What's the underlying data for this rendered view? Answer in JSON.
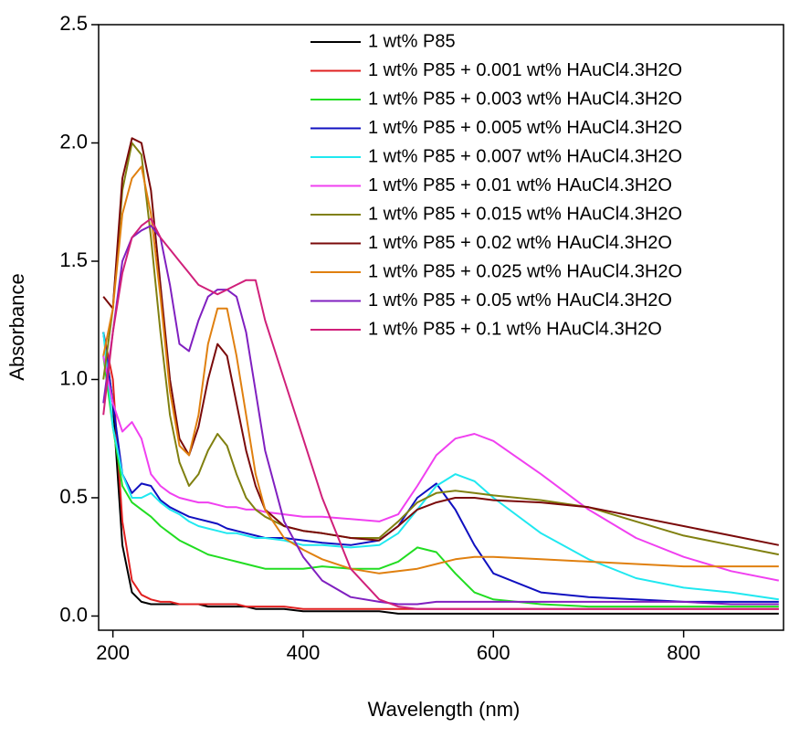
{
  "chart_data": {
    "type": "line",
    "x_label": "Wavelength (nm)",
    "y_label": "Absorbance",
    "x": [
      190,
      200,
      210,
      220,
      230,
      240,
      250,
      260,
      270,
      280,
      290,
      300,
      310,
      320,
      330,
      340,
      350,
      360,
      380,
      400,
      420,
      450,
      480,
      500,
      520,
      540,
      560,
      580,
      600,
      650,
      700,
      750,
      800,
      850,
      900
    ],
    "xlim": [
      185,
      905
    ],
    "xticks": [
      200,
      400,
      600,
      800
    ],
    "ylim": [
      -0.06,
      2.5
    ],
    "yticks": [
      {
        "value": 0,
        "label": "0.0"
      },
      {
        "value": 0.5,
        "label": "0.5"
      },
      {
        "value": 1,
        "label": "1.0"
      },
      {
        "value": 1.5,
        "label": "1.5"
      },
      {
        "value": 2,
        "label": "2.0"
      },
      {
        "value": 2.5,
        "label": "2.5"
      }
    ],
    "grid": false,
    "legend": "upper right",
    "series": [
      {
        "name": "1 wt% P85",
        "color": "#000000",
        "values": [
          1.2,
          0.9,
          0.3,
          0.1,
          0.06,
          0.05,
          0.05,
          0.05,
          0.05,
          0.05,
          0.05,
          0.04,
          0.04,
          0.04,
          0.04,
          0.04,
          0.03,
          0.03,
          0.03,
          0.02,
          0.02,
          0.02,
          0.02,
          0.01,
          0.01,
          0.01,
          0.01,
          0.01,
          0.01,
          0.01,
          0.01,
          0.01,
          0.01,
          0.01,
          0.01
        ]
      },
      {
        "name": "1 wt% P85 + 0.001 wt% HAuCl4.3H2O",
        "color": "#e02020",
        "values": [
          1.2,
          1.0,
          0.4,
          0.15,
          0.09,
          0.07,
          0.06,
          0.06,
          0.05,
          0.05,
          0.05,
          0.05,
          0.05,
          0.05,
          0.05,
          0.04,
          0.04,
          0.04,
          0.04,
          0.03,
          0.03,
          0.03,
          0.03,
          0.03,
          0.03,
          0.03,
          0.03,
          0.03,
          0.03,
          0.03,
          0.03,
          0.03,
          0.03,
          0.03,
          0.03
        ]
      },
      {
        "name": "1 wt% P85 + 0.003 wt% HAuCl4.3H2O",
        "color": "#22dd22",
        "values": [
          1.1,
          0.8,
          0.55,
          0.48,
          0.45,
          0.42,
          0.38,
          0.35,
          0.32,
          0.3,
          0.28,
          0.26,
          0.25,
          0.24,
          0.23,
          0.22,
          0.21,
          0.2,
          0.2,
          0.2,
          0.21,
          0.2,
          0.2,
          0.23,
          0.29,
          0.27,
          0.18,
          0.1,
          0.07,
          0.05,
          0.04,
          0.04,
          0.04,
          0.04,
          0.04
        ]
      },
      {
        "name": "1 wt% P85 + 0.005 wt% HAuCl4.3H2O",
        "color": "#1010c0",
        "values": [
          1.2,
          0.9,
          0.6,
          0.52,
          0.56,
          0.55,
          0.49,
          0.46,
          0.44,
          0.42,
          0.41,
          0.4,
          0.39,
          0.37,
          0.36,
          0.35,
          0.34,
          0.33,
          0.33,
          0.32,
          0.31,
          0.3,
          0.32,
          0.38,
          0.5,
          0.56,
          0.45,
          0.3,
          0.18,
          0.1,
          0.08,
          0.07,
          0.06,
          0.06,
          0.06
        ]
      },
      {
        "name": "1 wt% P85 + 0.007 wt% HAuCl4.3H2O",
        "color": "#20e8f0",
        "values": [
          1.2,
          0.8,
          0.6,
          0.5,
          0.5,
          0.52,
          0.48,
          0.45,
          0.43,
          0.4,
          0.38,
          0.37,
          0.36,
          0.35,
          0.35,
          0.34,
          0.33,
          0.33,
          0.32,
          0.3,
          0.3,
          0.29,
          0.3,
          0.35,
          0.45,
          0.55,
          0.6,
          0.57,
          0.5,
          0.35,
          0.24,
          0.16,
          0.12,
          0.1,
          0.07
        ]
      },
      {
        "name": "1 wt% P85 + 0.01 wt% HAuCl4.3H2O",
        "color": "#f040f0",
        "values": [
          1.1,
          0.9,
          0.78,
          0.82,
          0.75,
          0.6,
          0.55,
          0.52,
          0.5,
          0.49,
          0.48,
          0.48,
          0.47,
          0.46,
          0.46,
          0.45,
          0.45,
          0.44,
          0.43,
          0.42,
          0.42,
          0.41,
          0.4,
          0.43,
          0.55,
          0.68,
          0.75,
          0.77,
          0.74,
          0.6,
          0.45,
          0.33,
          0.25,
          0.19,
          0.15
        ]
      },
      {
        "name": "1 wt% P85 + 0.015 wt% HAuCl4.3H2O",
        "color": "#808010",
        "values": [
          1.0,
          1.3,
          1.8,
          2.0,
          1.95,
          1.6,
          1.2,
          0.85,
          0.65,
          0.55,
          0.6,
          0.7,
          0.77,
          0.72,
          0.6,
          0.5,
          0.45,
          0.42,
          0.38,
          0.36,
          0.35,
          0.33,
          0.33,
          0.4,
          0.48,
          0.52,
          0.53,
          0.52,
          0.51,
          0.49,
          0.46,
          0.4,
          0.34,
          0.3,
          0.26
        ]
      },
      {
        "name": "1 wt% P85 + 0.02 wt% HAuCl4.3H2O",
        "color": "#7a0a0a",
        "values": [
          1.35,
          1.3,
          1.85,
          2.02,
          2.0,
          1.8,
          1.4,
          1.0,
          0.75,
          0.68,
          0.8,
          1.0,
          1.15,
          1.1,
          0.9,
          0.7,
          0.55,
          0.45,
          0.38,
          0.36,
          0.35,
          0.33,
          0.32,
          0.38,
          0.45,
          0.48,
          0.5,
          0.5,
          0.49,
          0.48,
          0.46,
          0.42,
          0.38,
          0.34,
          0.3
        ]
      },
      {
        "name": "1 wt% P85 + 0.025 wt% HAuCl4.3H2O",
        "color": "#e08010",
        "values": [
          1.1,
          1.3,
          1.7,
          1.85,
          1.9,
          1.7,
          1.35,
          0.95,
          0.72,
          0.68,
          0.85,
          1.15,
          1.3,
          1.3,
          1.1,
          0.85,
          0.6,
          0.45,
          0.33,
          0.28,
          0.24,
          0.2,
          0.18,
          0.19,
          0.2,
          0.22,
          0.24,
          0.25,
          0.25,
          0.24,
          0.23,
          0.22,
          0.21,
          0.21,
          0.21
        ]
      },
      {
        "name": "1 wt% P85 + 0.05 wt% HAuCl4.3H2O",
        "color": "#8020c0",
        "values": [
          0.9,
          1.2,
          1.5,
          1.6,
          1.63,
          1.65,
          1.6,
          1.4,
          1.15,
          1.12,
          1.25,
          1.35,
          1.38,
          1.38,
          1.35,
          1.2,
          0.95,
          0.7,
          0.4,
          0.25,
          0.15,
          0.08,
          0.06,
          0.05,
          0.05,
          0.06,
          0.06,
          0.06,
          0.06,
          0.06,
          0.06,
          0.06,
          0.06,
          0.05,
          0.05
        ]
      },
      {
        "name": "1 wt% P85 + 0.1 wt% HAuCl4.3H2O",
        "color": "#d0207a",
        "values": [
          0.85,
          1.2,
          1.45,
          1.6,
          1.65,
          1.68,
          1.6,
          1.55,
          1.5,
          1.45,
          1.4,
          1.38,
          1.36,
          1.38,
          1.4,
          1.42,
          1.42,
          1.25,
          1.0,
          0.75,
          0.5,
          0.2,
          0.07,
          0.04,
          0.03,
          0.03,
          0.03,
          0.03,
          0.03,
          0.03,
          0.03,
          0.03,
          0.03,
          0.03,
          0.03
        ]
      }
    ]
  }
}
